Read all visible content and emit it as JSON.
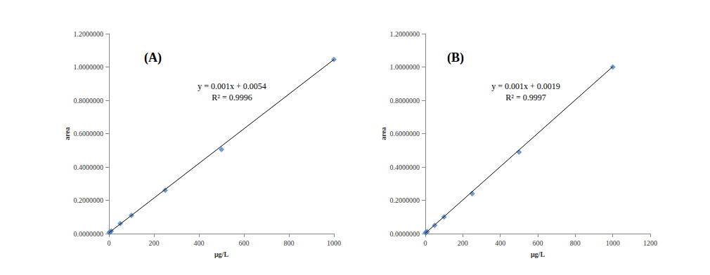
{
  "chart_data": [
    {
      "type": "scatter",
      "title": "(A)",
      "x_label": "μg/L",
      "y_label": "area",
      "annotations": [
        "y = 0.001x + 0.0054",
        "R² = 0.9996"
      ],
      "series": [
        {
          "type": "scatter",
          "color": "#4f81bd",
          "marker": "diamond",
          "x": [
            1,
            5,
            10,
            50,
            100,
            250,
            500,
            1000
          ],
          "values": [
            0.006,
            0.01,
            0.015,
            0.06,
            0.11,
            0.26,
            0.505,
            1.045
          ]
        },
        {
          "type": "line",
          "color": "#000000",
          "line_style": "solid",
          "x": [
            0,
            1000
          ],
          "values": [
            0.0054,
            1.045
          ]
        }
      ],
      "xlim": [
        0,
        1000
      ],
      "xticks": [
        0,
        200,
        400,
        600,
        800,
        1000
      ],
      "ylim": [
        0,
        1.2
      ],
      "yticks": [
        {
          "value": 0,
          "label": "0.0000000"
        },
        {
          "value": 0.2,
          "label": "0.2000000"
        },
        {
          "value": 0.4,
          "label": "0.4000000"
        },
        {
          "value": 0.6,
          "label": "0.6000000"
        },
        {
          "value": 0.8,
          "label": "0.8000000"
        },
        {
          "value": 1.0,
          "label": "1.0000000"
        },
        {
          "value": 1.2,
          "label": "1.2000000"
        }
      ],
      "grid": false
    },
    {
      "type": "scatter",
      "title": "(B)",
      "x_label": "μg/L",
      "y_label": "area",
      "annotations": [
        "y = 0.001x + 0.0019",
        "R² = 0.9997"
      ],
      "series": [
        {
          "type": "scatter",
          "color": "#4f81bd",
          "marker": "diamond",
          "x": [
            1,
            5,
            10,
            50,
            100,
            250,
            500,
            1000
          ],
          "values": [
            0.005,
            0.008,
            0.012,
            0.05,
            0.1,
            0.24,
            0.49,
            1.0
          ]
        },
        {
          "type": "line",
          "color": "#000000",
          "line_style": "solid",
          "x": [
            0,
            1000
          ],
          "values": [
            0.0019,
            1.002
          ]
        }
      ],
      "xlim": [
        0,
        1200
      ],
      "xticks": [
        0,
        200,
        400,
        600,
        800,
        1000,
        1200
      ],
      "ylim": [
        0,
        1.2
      ],
      "yticks": [
        {
          "value": 0,
          "label": "0.0000000"
        },
        {
          "value": 0.2,
          "label": "0.2000000"
        },
        {
          "value": 0.4,
          "label": "0.4000000"
        },
        {
          "value": 0.6,
          "label": "0.6000000"
        },
        {
          "value": 0.8,
          "label": "0.8000000"
        },
        {
          "value": 1.0,
          "label": "1.0000000"
        },
        {
          "value": 1.2,
          "label": "1.2000000"
        }
      ],
      "grid": false
    }
  ]
}
